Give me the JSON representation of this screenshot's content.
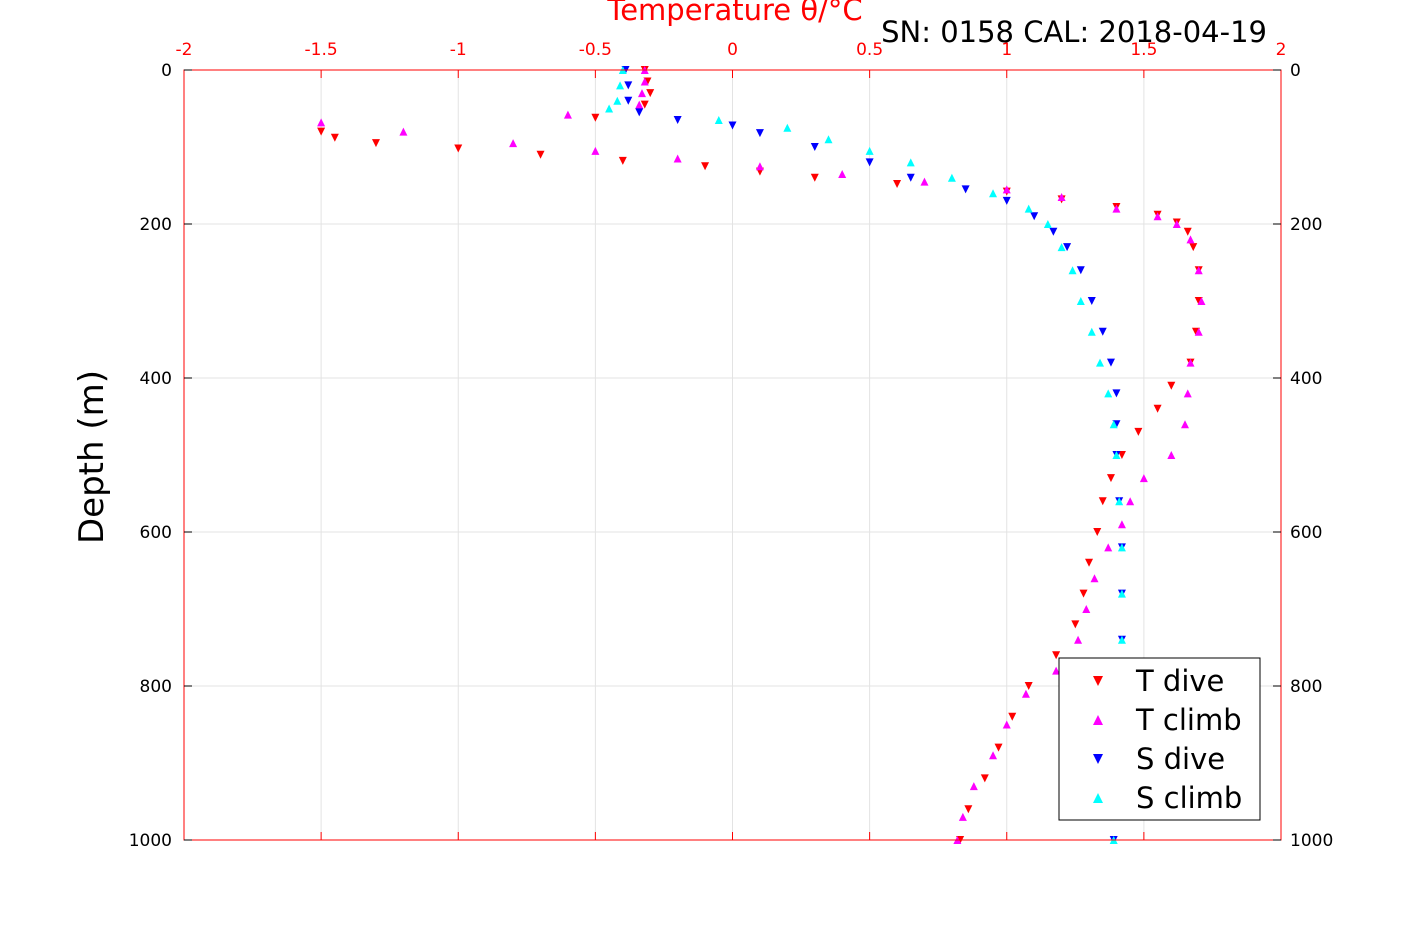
{
  "chart_data": {
    "type": "scatter",
    "title": "Temperature θ/°C",
    "subtitle": "SN: 0158  CAL: 2018-04-19",
    "xlabel": "Temperature θ/°C",
    "ylabel": "Depth (m)",
    "xlim": [
      -2,
      2
    ],
    "ylim": [
      0,
      1000
    ],
    "y_reversed": true,
    "xticks": [
      "-2",
      "-1.5",
      "-1",
      "-0.5",
      "0",
      "0.5",
      "1",
      "1.5",
      "2"
    ],
    "yticks": [
      "0",
      "200",
      "400",
      "600",
      "800",
      "1000"
    ],
    "grid": true,
    "legend_position": "bottom-right",
    "axis_color": "#ff0000",
    "series": [
      {
        "name": "T dive",
        "color": "#ff0000",
        "marker": "triangle-down",
        "points": [
          [
            -0.32,
            0
          ],
          [
            -0.31,
            15
          ],
          [
            -0.3,
            30
          ],
          [
            -0.32,
            45
          ],
          [
            -0.5,
            62
          ],
          [
            -1.5,
            80
          ],
          [
            -1.45,
            88
          ],
          [
            -1.3,
            95
          ],
          [
            -1.0,
            102
          ],
          [
            -0.7,
            110
          ],
          [
            -0.4,
            118
          ],
          [
            -0.1,
            125
          ],
          [
            0.1,
            132
          ],
          [
            0.3,
            140
          ],
          [
            0.6,
            148
          ],
          [
            1.0,
            158
          ],
          [
            1.2,
            168
          ],
          [
            1.4,
            178
          ],
          [
            1.55,
            188
          ],
          [
            1.62,
            198
          ],
          [
            1.66,
            210
          ],
          [
            1.68,
            230
          ],
          [
            1.7,
            260
          ],
          [
            1.7,
            300
          ],
          [
            1.69,
            340
          ],
          [
            1.67,
            380
          ],
          [
            1.6,
            410
          ],
          [
            1.55,
            440
          ],
          [
            1.48,
            470
          ],
          [
            1.42,
            500
          ],
          [
            1.38,
            530
          ],
          [
            1.35,
            560
          ],
          [
            1.33,
            600
          ],
          [
            1.3,
            640
          ],
          [
            1.28,
            680
          ],
          [
            1.25,
            720
          ],
          [
            1.18,
            760
          ],
          [
            1.08,
            800
          ],
          [
            1.02,
            840
          ],
          [
            0.97,
            880
          ],
          [
            0.92,
            920
          ],
          [
            0.86,
            960
          ],
          [
            0.83,
            1000
          ]
        ]
      },
      {
        "name": "T climb",
        "color": "#ff00ff",
        "marker": "triangle-up",
        "points": [
          [
            -0.32,
            0
          ],
          [
            -0.32,
            15
          ],
          [
            -0.33,
            30
          ],
          [
            -0.34,
            45
          ],
          [
            -0.6,
            58
          ],
          [
            -1.5,
            68
          ],
          [
            -1.2,
            80
          ],
          [
            -0.8,
            95
          ],
          [
            -0.5,
            105
          ],
          [
            -0.2,
            115
          ],
          [
            0.1,
            125
          ],
          [
            0.4,
            135
          ],
          [
            0.7,
            145
          ],
          [
            1.0,
            155
          ],
          [
            1.2,
            165
          ],
          [
            1.4,
            180
          ],
          [
            1.55,
            190
          ],
          [
            1.62,
            200
          ],
          [
            1.67,
            220
          ],
          [
            1.7,
            260
          ],
          [
            1.71,
            300
          ],
          [
            1.7,
            340
          ],
          [
            1.67,
            380
          ],
          [
            1.66,
            420
          ],
          [
            1.65,
            460
          ],
          [
            1.6,
            500
          ],
          [
            1.5,
            530
          ],
          [
            1.45,
            560
          ],
          [
            1.42,
            590
          ],
          [
            1.37,
            620
          ],
          [
            1.32,
            660
          ],
          [
            1.29,
            700
          ],
          [
            1.26,
            740
          ],
          [
            1.18,
            780
          ],
          [
            1.07,
            810
          ],
          [
            1.0,
            850
          ],
          [
            0.95,
            890
          ],
          [
            0.88,
            930
          ],
          [
            0.84,
            970
          ],
          [
            0.82,
            1000
          ]
        ]
      },
      {
        "name": "S dive",
        "color": "#0000ff",
        "marker": "triangle-down",
        "points": [
          [
            -0.39,
            0
          ],
          [
            -0.38,
            20
          ],
          [
            -0.38,
            40
          ],
          [
            -0.34,
            55
          ],
          [
            -0.2,
            65
          ],
          [
            0.0,
            72
          ],
          [
            0.1,
            82
          ],
          [
            0.3,
            100
          ],
          [
            0.5,
            120
          ],
          [
            0.65,
            140
          ],
          [
            0.85,
            155
          ],
          [
            1.0,
            170
          ],
          [
            1.1,
            190
          ],
          [
            1.17,
            210
          ],
          [
            1.22,
            230
          ],
          [
            1.27,
            260
          ],
          [
            1.31,
            300
          ],
          [
            1.35,
            340
          ],
          [
            1.38,
            380
          ],
          [
            1.4,
            420
          ],
          [
            1.4,
            460
          ],
          [
            1.4,
            500
          ],
          [
            1.41,
            560
          ],
          [
            1.42,
            620
          ],
          [
            1.42,
            680
          ],
          [
            1.42,
            740
          ],
          [
            1.41,
            800
          ],
          [
            1.4,
            860
          ],
          [
            1.4,
            920
          ],
          [
            1.39,
            1000
          ]
        ]
      },
      {
        "name": "S climb",
        "color": "#00ffff",
        "marker": "triangle-up",
        "points": [
          [
            -0.4,
            0
          ],
          [
            -0.41,
            20
          ],
          [
            -0.42,
            40
          ],
          [
            -0.45,
            50
          ],
          [
            -0.05,
            65
          ],
          [
            0.2,
            75
          ],
          [
            0.35,
            90
          ],
          [
            0.5,
            105
          ],
          [
            0.65,
            120
          ],
          [
            0.8,
            140
          ],
          [
            0.95,
            160
          ],
          [
            1.08,
            180
          ],
          [
            1.15,
            200
          ],
          [
            1.2,
            230
          ],
          [
            1.24,
            260
          ],
          [
            1.27,
            300
          ],
          [
            1.31,
            340
          ],
          [
            1.34,
            380
          ],
          [
            1.37,
            420
          ],
          [
            1.39,
            460
          ],
          [
            1.4,
            500
          ],
          [
            1.41,
            560
          ],
          [
            1.42,
            620
          ],
          [
            1.42,
            680
          ],
          [
            1.42,
            740
          ],
          [
            1.41,
            800
          ],
          [
            1.4,
            860
          ],
          [
            1.39,
            920
          ],
          [
            1.39,
            1000
          ]
        ]
      }
    ]
  }
}
